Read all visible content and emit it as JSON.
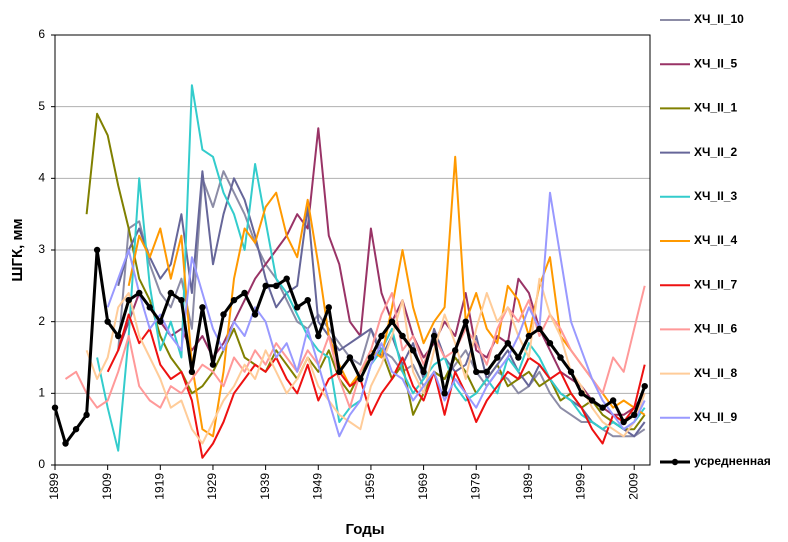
{
  "chart_data": {
    "type": "line",
    "x_label": "Годы",
    "y_label": "ШГК, мм",
    "x": [
      1899,
      1901,
      1903,
      1905,
      1907,
      1909,
      1911,
      1913,
      1915,
      1917,
      1919,
      1921,
      1923,
      1925,
      1927,
      1929,
      1931,
      1933,
      1935,
      1937,
      1939,
      1941,
      1943,
      1945,
      1947,
      1949,
      1951,
      1953,
      1955,
      1957,
      1959,
      1961,
      1963,
      1965,
      1967,
      1969,
      1971,
      1973,
      1975,
      1977,
      1979,
      1981,
      1983,
      1985,
      1987,
      1989,
      1991,
      1993,
      1995,
      1997,
      1999,
      2001,
      2003,
      2005,
      2007,
      2009,
      2011
    ],
    "xlim": [
      1899,
      2012
    ],
    "xticks": [
      1899,
      1909,
      1919,
      1929,
      1939,
      1949,
      1959,
      1969,
      1979,
      1989,
      1999,
      2009
    ],
    "ylim": [
      0,
      6
    ],
    "yticks": [
      0,
      1,
      2,
      3,
      4,
      5,
      6
    ],
    "grid": true,
    "legend": "right",
    "series": [
      {
        "name": "ХЧ_II_10",
        "color": "#8c8ca6",
        "values": [
          null,
          null,
          null,
          null,
          null,
          null,
          1.6,
          3.3,
          3.4,
          2.8,
          2.4,
          2.2,
          2.6,
          1.9,
          4.0,
          3.6,
          4.1,
          3.8,
          3.5,
          3.1,
          2.8,
          2.6,
          2.3,
          2.0,
          1.9,
          2.1,
          1.9,
          1.7,
          1.5,
          1.4,
          1.9,
          1.6,
          1.5,
          1.3,
          1.4,
          1.1,
          1.3,
          1.2,
          1.4,
          1.6,
          1.3,
          1.1,
          1.3,
          1.2,
          1.0,
          1.1,
          1.3,
          1.0,
          0.8,
          0.7,
          0.6,
          0.6,
          0.5,
          0.4,
          0.4,
          0.4,
          0.5
        ]
      },
      {
        "name": "ХЧ_II_5",
        "color": "#993366",
        "values": [
          null,
          null,
          null,
          null,
          null,
          null,
          1.6,
          2.0,
          2.4,
          2.2,
          2.0,
          1.8,
          1.9,
          1.6,
          1.8,
          1.5,
          1.7,
          2.0,
          2.3,
          2.6,
          2.8,
          3.0,
          3.2,
          3.5,
          3.3,
          4.7,
          3.2,
          2.8,
          2.0,
          1.8,
          3.3,
          2.4,
          2.0,
          2.3,
          1.8,
          1.5,
          1.7,
          2.0,
          1.8,
          2.4,
          1.6,
          1.5,
          1.8,
          1.7,
          2.6,
          2.4,
          1.9,
          1.6,
          1.3,
          1.2,
          1.1,
          0.9,
          0.8,
          0.7,
          0.7,
          0.8,
          1.0
        ]
      },
      {
        "name": "ХЧ_II_1",
        "color": "#808000",
        "values": [
          null,
          null,
          null,
          3.5,
          4.9,
          4.6,
          3.9,
          3.3,
          2.6,
          2.3,
          1.8,
          1.5,
          1.3,
          1.0,
          1.1,
          1.3,
          1.6,
          1.9,
          1.5,
          1.4,
          1.3,
          1.6,
          1.4,
          1.2,
          1.5,
          1.3,
          1.6,
          1.2,
          1.0,
          1.3,
          1.5,
          1.6,
          1.2,
          1.4,
          0.7,
          1.0,
          1.3,
          1.2,
          1.5,
          1.3,
          1.0,
          1.2,
          1.4,
          1.1,
          1.2,
          1.3,
          1.1,
          1.2,
          0.9,
          1.0,
          0.8,
          0.9,
          0.7,
          0.6,
          0.5,
          0.5,
          0.7
        ]
      },
      {
        "name": "ХЧ_II_2",
        "color": "#666699",
        "values": [
          null,
          null,
          null,
          null,
          null,
          null,
          2.5,
          3.0,
          3.3,
          2.9,
          2.6,
          2.8,
          3.5,
          2.4,
          4.1,
          2.8,
          3.5,
          4.0,
          3.7,
          3.2,
          2.6,
          2.2,
          2.4,
          2.5,
          3.6,
          2.0,
          1.8,
          1.6,
          1.7,
          1.8,
          1.9,
          1.5,
          1.8,
          1.4,
          1.7,
          1.2,
          1.9,
          1.5,
          1.3,
          1.4,
          1.8,
          1.2,
          1.4,
          1.6,
          1.3,
          1.1,
          1.4,
          1.2,
          1.0,
          0.9,
          0.8,
          0.6,
          0.5,
          0.6,
          0.5,
          0.4,
          0.6
        ]
      },
      {
        "name": "ХЧ_II_3",
        "color": "#33cccc",
        "values": [
          null,
          null,
          null,
          null,
          1.5,
          0.8,
          0.2,
          1.8,
          4.0,
          2.5,
          1.6,
          2.0,
          1.5,
          5.3,
          4.4,
          4.3,
          3.8,
          3.5,
          3.0,
          4.2,
          3.4,
          2.6,
          2.4,
          2.1,
          1.8,
          1.6,
          1.5,
          0.6,
          0.8,
          0.9,
          1.4,
          1.6,
          1.9,
          1.3,
          1.0,
          1.2,
          1.4,
          1.5,
          1.1,
          0.9,
          1.0,
          1.2,
          1.0,
          1.5,
          1.3,
          1.7,
          1.5,
          1.2,
          1.0,
          0.9,
          0.7,
          0.6,
          0.5,
          0.6,
          0.5,
          0.6,
          0.8
        ]
      },
      {
        "name": "ХЧ_II_4",
        "color": "#ff9900",
        "values": [
          null,
          null,
          null,
          null,
          null,
          null,
          null,
          2.5,
          3.2,
          2.9,
          3.3,
          2.6,
          3.2,
          1.4,
          0.5,
          0.4,
          1.3,
          2.6,
          3.3,
          3.1,
          3.6,
          3.8,
          3.2,
          2.9,
          3.7,
          2.8,
          1.8,
          1.4,
          1.1,
          1.3,
          1.6,
          1.5,
          2.2,
          3.0,
          2.2,
          1.7,
          2.0,
          2.2,
          4.3,
          2.0,
          2.4,
          1.9,
          1.7,
          2.5,
          2.3,
          1.8,
          2.5,
          2.9,
          1.8,
          1.6,
          1.4,
          1.2,
          1.0,
          0.8,
          0.9,
          0.8,
          0.7
        ]
      },
      {
        "name": "ХЧ_II_7",
        "color": "#ee1111",
        "values": [
          null,
          null,
          null,
          null,
          null,
          1.3,
          1.6,
          2.1,
          1.7,
          1.9,
          1.4,
          1.2,
          1.3,
          0.9,
          0.1,
          0.3,
          0.6,
          1.0,
          1.2,
          1.4,
          1.3,
          1.5,
          1.2,
          1.0,
          1.4,
          0.9,
          1.2,
          1.3,
          1.1,
          1.2,
          0.7,
          1.0,
          1.2,
          1.5,
          1.1,
          0.9,
          1.3,
          0.7,
          1.3,
          1.0,
          0.6,
          0.9,
          1.1,
          1.3,
          1.2,
          1.5,
          1.4,
          1.2,
          1.3,
          1.0,
          0.8,
          0.5,
          0.3,
          0.7,
          0.6,
          0.8,
          1.4
        ]
      },
      {
        "name": "ХЧ_II_6",
        "color": "#ff9999",
        "values": [
          null,
          1.2,
          1.3,
          1.0,
          0.8,
          0.9,
          1.3,
          1.8,
          1.1,
          0.9,
          0.8,
          1.1,
          1.0,
          1.2,
          1.4,
          1.3,
          1.1,
          1.5,
          1.3,
          1.6,
          1.4,
          1.7,
          1.5,
          1.3,
          1.6,
          1.4,
          1.8,
          1.2,
          0.8,
          1.3,
          1.6,
          2.1,
          2.4,
          1.6,
          1.8,
          1.4,
          1.8,
          1.5,
          1.6,
          1.9,
          1.7,
          1.4,
          1.9,
          2.2,
          2.0,
          2.3,
          1.8,
          2.1,
          1.9,
          1.6,
          1.4,
          1.2,
          1.0,
          1.5,
          1.3,
          1.9,
          2.5
        ]
      },
      {
        "name": "ХЧ_II_8",
        "color": "#ffcc99",
        "values": [
          null,
          null,
          null,
          1.6,
          1.2,
          1.5,
          2.2,
          2.4,
          1.8,
          1.5,
          1.2,
          0.8,
          0.9,
          0.5,
          0.3,
          0.6,
          0.9,
          1.1,
          1.4,
          1.2,
          1.6,
          1.3,
          1.0,
          1.2,
          1.5,
          1.1,
          0.9,
          0.7,
          0.6,
          0.5,
          1.1,
          1.4,
          1.8,
          2.3,
          1.3,
          1.0,
          1.6,
          2.1,
          1.7,
          1.2,
          1.9,
          2.4,
          2.0,
          2.2,
          1.8,
          1.5,
          2.6,
          2.1,
          1.8,
          1.3,
          1.1,
          0.8,
          0.6,
          0.5,
          0.4,
          0.6,
          1.0
        ]
      },
      {
        "name": "ХЧ_II_9",
        "color": "#9999ff",
        "values": [
          null,
          null,
          null,
          null,
          null,
          2.2,
          2.6,
          3.0,
          2.4,
          1.9,
          2.1,
          1.8,
          1.6,
          2.9,
          2.4,
          1.9,
          1.6,
          2.0,
          1.8,
          2.2,
          2.0,
          1.5,
          1.7,
          1.3,
          1.9,
          1.4,
          0.9,
          0.4,
          0.7,
          0.9,
          1.4,
          1.7,
          1.3,
          1.2,
          0.9,
          1.1,
          1.3,
          0.9,
          1.2,
          1.0,
          0.8,
          1.1,
          1.3,
          1.5,
          1.8,
          2.2,
          1.9,
          3.8,
          2.9,
          2.0,
          1.6,
          1.2,
          0.9,
          0.7,
          0.5,
          0.6,
          0.9
        ]
      },
      {
        "name": "усредненная",
        "color": "#000000",
        "marker": "circle",
        "values": [
          0.8,
          0.3,
          0.5,
          0.7,
          3.0,
          2.0,
          1.8,
          2.3,
          2.4,
          2.2,
          2.0,
          2.4,
          2.3,
          1.3,
          2.2,
          1.4,
          2.1,
          2.3,
          2.4,
          2.1,
          2.5,
          2.5,
          2.6,
          2.2,
          2.3,
          1.8,
          2.2,
          1.3,
          1.5,
          1.2,
          1.5,
          1.8,
          2.0,
          1.8,
          1.6,
          1.3,
          1.8,
          1.0,
          1.6,
          2.0,
          1.3,
          1.3,
          1.5,
          1.7,
          1.5,
          1.8,
          1.9,
          1.7,
          1.5,
          1.3,
          1.0,
          0.9,
          0.8,
          0.9,
          0.6,
          0.7,
          1.1
        ]
      }
    ]
  }
}
